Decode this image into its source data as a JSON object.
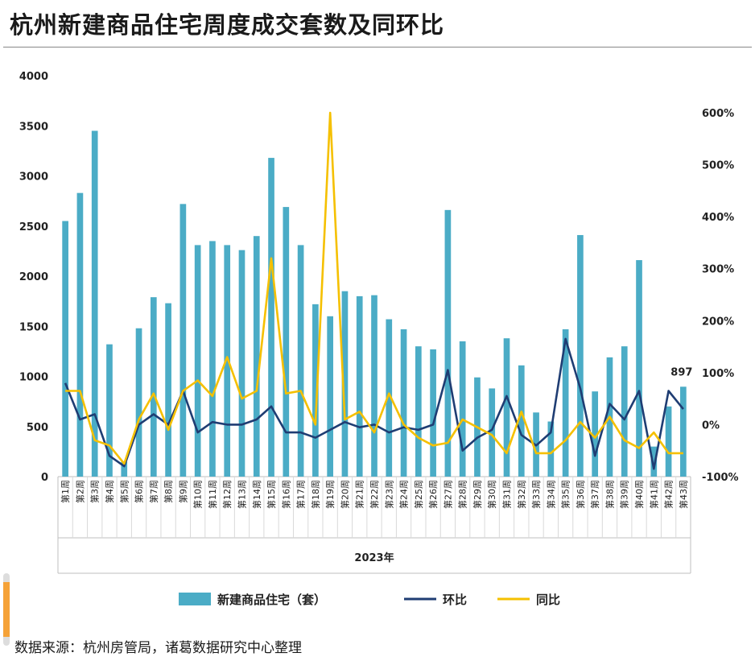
{
  "title": "杭州新建商品住宅周度成交套数及同环比",
  "source": "数据来源：杭州房管局，诸葛数据研究中心整理",
  "chart_data": {
    "type": "bar+line",
    "xlabel": "2023年",
    "categories": [
      "第1周",
      "第2周",
      "第3周",
      "第4周",
      "第5周",
      "第6周",
      "第7周",
      "第8周",
      "第9周",
      "第10周",
      "第11周",
      "第12周",
      "第13周",
      "第14周",
      "第15周",
      "第16周",
      "第17周",
      "第18周",
      "第19周",
      "第20周",
      "第21周",
      "第22周",
      "第23周",
      "第24周",
      "第25周",
      "第26周",
      "第27周",
      "第28周",
      "第29周",
      "第30周",
      "第31周",
      "第32周",
      "第33周",
      "第34周",
      "第35周",
      "第36周",
      "第37周",
      "第38周",
      "第39周",
      "第40周",
      "第41周",
      "第42周",
      "第43周"
    ],
    "left_axis": {
      "ylim": [
        0,
        4000
      ],
      "ticks": [
        "0",
        "500",
        "1000",
        "1500",
        "2000",
        "2500",
        "3000",
        "3500",
        "4000"
      ]
    },
    "right_axis": {
      "ylim": [
        -100,
        600
      ],
      "ticks": [
        "-100%",
        "0%",
        "100%",
        "200%",
        "300%",
        "400%",
        "500%",
        "600%"
      ]
    },
    "series": [
      {
        "name": "新建商品住宅（套）",
        "type": "bar",
        "axis": "left",
        "color": "#4bacc6",
        "values": [
          2550,
          2830,
          3450,
          1320,
          150,
          1480,
          1790,
          1730,
          2720,
          2310,
          2350,
          2310,
          2260,
          2400,
          3180,
          2690,
          2310,
          1720,
          1600,
          1850,
          1800,
          1810,
          1570,
          1470,
          1300,
          1270,
          2660,
          1350,
          990,
          880,
          1380,
          1110,
          640,
          550,
          1470,
          2410,
          850,
          1190,
          1300,
          2160,
          300,
          700,
          897
        ]
      },
      {
        "name": "环比",
        "type": "line",
        "axis": "right",
        "color": "#1f3d73",
        "values": [
          80,
          10,
          20,
          -60,
          -80,
          0,
          20,
          0,
          65,
          -15,
          5,
          0,
          0,
          10,
          35,
          -15,
          -15,
          -25,
          -10,
          5,
          -5,
          0,
          -15,
          -5,
          -10,
          0,
          105,
          -50,
          -25,
          -10,
          55,
          -20,
          -40,
          -15,
          165,
          70,
          -60,
          40,
          10,
          65,
          -85,
          65,
          30
        ]
      },
      {
        "name": "同比",
        "type": "line",
        "axis": "right",
        "color": "#f5c000",
        "values": [
          65,
          65,
          -30,
          -40,
          -75,
          10,
          60,
          -10,
          65,
          85,
          55,
          130,
          50,
          65,
          320,
          60,
          65,
          0,
          600,
          10,
          25,
          -15,
          60,
          0,
          -25,
          -40,
          -35,
          10,
          -5,
          -20,
          -55,
          25,
          -55,
          -55,
          -30,
          5,
          -25,
          15,
          -30,
          -45,
          -15,
          -55,
          -55
        ]
      }
    ],
    "annotations": [
      {
        "category": "第43周",
        "text": "897"
      }
    ],
    "legend_position": "bottom"
  }
}
